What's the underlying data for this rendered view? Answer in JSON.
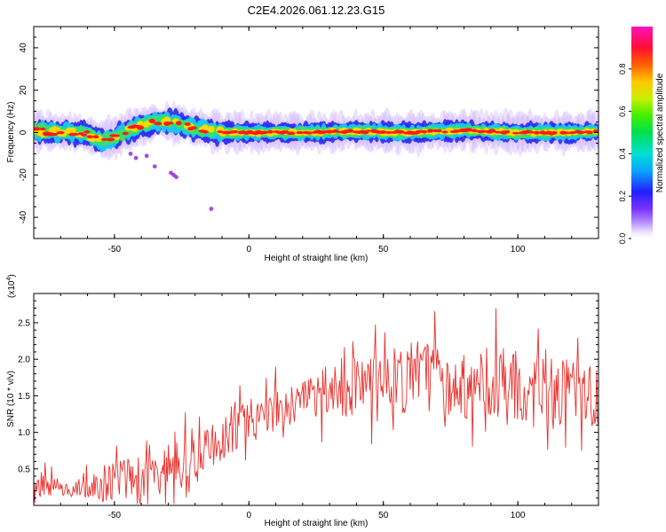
{
  "figure_title": "C2E4.2026.061.12.23.G15",
  "colors": {
    "snr_line": "#e8302c",
    "ridge_core": "#ff1a1a",
    "ridge_inner": "#ffd800",
    "ridge_mid": "#36e06a",
    "ridge_outer": "#19c8f0",
    "ridge_edge": "#2a2af2",
    "halo": "#c8a8ff",
    "scatter": "#8a20e0"
  },
  "chart_data": [
    {
      "id": "spectrogram",
      "type": "heatmap",
      "xlabel": "Height of straight line (km)",
      "ylabel": "Frequency (Hz)",
      "xlim": [
        -80,
        130
      ],
      "ylim": [
        -50,
        50
      ],
      "x_ticks": [
        -50,
        0,
        50,
        100
      ],
      "y_ticks": [
        -40,
        -20,
        0,
        20,
        40
      ],
      "ridge": {
        "description_points_x": [
          -80,
          -70,
          -62,
          -58,
          -55,
          -50,
          -45,
          -40,
          -35,
          -30,
          -25,
          -20,
          -15,
          -10,
          -5,
          0,
          20,
          40,
          60,
          80,
          100,
          120,
          130
        ],
        "description_points_freq": [
          1,
          0,
          0,
          -2,
          -4,
          -2,
          1,
          3,
          5,
          5,
          4,
          2,
          1,
          0,
          0,
          0,
          0,
          0.5,
          0,
          1,
          0,
          0,
          0.5
        ]
      },
      "scatter_points": [
        {
          "x": -44,
          "freq": -10
        },
        {
          "x": -42,
          "freq": -12
        },
        {
          "x": -38,
          "freq": -11
        },
        {
          "x": -29,
          "freq": -19
        },
        {
          "x": -28,
          "freq": -20
        },
        {
          "x": -27,
          "freq": -21
        },
        {
          "x": -35,
          "freq": -16
        },
        {
          "x": -14,
          "freq": -36
        }
      ],
      "colorbar": {
        "label": "Normalized spectral amplitude",
        "range": [
          0,
          1
        ],
        "ticks": [
          {
            "value": 0.0,
            "label": "0.0"
          },
          {
            "value": 0.2,
            "label": "0.2"
          },
          {
            "value": 0.4,
            "label": "0.4"
          },
          {
            "value": 0.6,
            "label": "0.6"
          },
          {
            "value": 0.8,
            "label": "0.8"
          }
        ]
      }
    },
    {
      "id": "snr",
      "type": "line",
      "xlabel": "Height of straight line (km)",
      "ylabel": "SNR (10 * v/v)",
      "y_multiplier_label": "(x10",
      "y_multiplier_exp": "4",
      "y_multiplier_close": ")",
      "xlim": [
        -80,
        130
      ],
      "ylim": [
        0,
        2.9
      ],
      "x_ticks": [
        -50,
        0,
        50,
        100
      ],
      "y_ticks": [
        {
          "value": 0.5,
          "label": "0.5"
        },
        {
          "value": 1.0,
          "label": "1.0"
        },
        {
          "value": 1.5,
          "label": "1.5"
        },
        {
          "value": 2.0,
          "label": "2.0"
        },
        {
          "value": 2.5,
          "label": "2.5"
        }
      ],
      "series": [
        {
          "name": "SNR",
          "x": [
            -80,
            -75,
            -70,
            -65,
            -60,
            -55,
            -50,
            -45,
            -40,
            -35,
            -30,
            -25,
            -20,
            -15,
            -10,
            -5,
            0,
            5,
            10,
            15,
            20,
            25,
            30,
            35,
            40,
            45,
            50,
            55,
            60,
            65,
            70,
            75,
            80,
            85,
            90,
            95,
            100,
            105,
            110,
            115,
            120,
            125,
            130
          ],
          "mean": [
            0.25,
            0.28,
            0.25,
            0.22,
            0.25,
            0.3,
            0.35,
            0.4,
            0.45,
            0.35,
            0.5,
            0.55,
            0.7,
            0.85,
            0.95,
            1.05,
            1.15,
            1.25,
            1.3,
            1.35,
            1.4,
            1.45,
            1.55,
            1.6,
            1.65,
            1.65,
            1.6,
            1.7,
            1.75,
            1.75,
            1.7,
            1.75,
            1.65,
            1.6,
            1.7,
            1.6,
            1.55,
            1.55,
            1.6,
            1.5,
            1.55,
            1.6,
            1.5
          ],
          "spread": [
            0.15,
            0.15,
            0.12,
            0.12,
            0.15,
            0.25,
            0.3,
            0.3,
            0.35,
            0.3,
            0.3,
            0.35,
            0.35,
            0.35,
            0.35,
            0.3,
            0.3,
            0.25,
            0.3,
            0.3,
            0.3,
            0.35,
            0.4,
            0.45,
            0.45,
            0.45,
            0.45,
            0.5,
            0.5,
            0.5,
            0.55,
            0.5,
            0.5,
            0.5,
            0.5,
            0.5,
            0.5,
            0.5,
            0.5,
            0.5,
            0.5,
            0.5,
            0.5
          ]
        }
      ]
    }
  ]
}
